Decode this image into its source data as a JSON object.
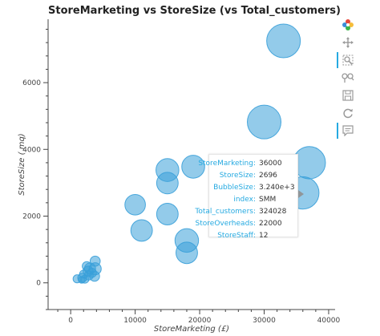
{
  "chart_data": {
    "type": "scatter",
    "title": "StoreMarketing vs StoreSize (vs Total_customers)",
    "xlabel": "StoreMarketing (£)",
    "ylabel": "StoreSize ( mq)",
    "xlim": [
      -3500,
      41000
    ],
    "ylim": [
      -800,
      7900
    ],
    "xticks": [
      0,
      10000,
      20000,
      30000,
      40000
    ],
    "yticks": [
      0,
      2000,
      4000,
      6000
    ],
    "marker_color": "#3aa0d9",
    "grid": false,
    "legend": "none",
    "points": [
      {
        "x": 33000,
        "y": 7250,
        "size": 1.0
      },
      {
        "x": 30000,
        "y": 4820,
        "size": 1.0
      },
      {
        "x": 37000,
        "y": 3600,
        "size": 0.96
      },
      {
        "x": 36000,
        "y": 2696,
        "size": 0.96
      },
      {
        "x": 15000,
        "y": 3380,
        "size": 0.68
      },
      {
        "x": 19000,
        "y": 3480,
        "size": 0.68
      },
      {
        "x": 15000,
        "y": 2990,
        "size": 0.64
      },
      {
        "x": 10000,
        "y": 2340,
        "size": 0.61
      },
      {
        "x": 15000,
        "y": 2060,
        "size": 0.64
      },
      {
        "x": 11000,
        "y": 1570,
        "size": 0.64
      },
      {
        "x": 18000,
        "y": 1270,
        "size": 0.7
      },
      {
        "x": 18000,
        "y": 900,
        "size": 0.64
      },
      {
        "x": 3800,
        "y": 650,
        "size": 0.3
      },
      {
        "x": 2500,
        "y": 500,
        "size": 0.27
      },
      {
        "x": 3000,
        "y": 430,
        "size": 0.33
      },
      {
        "x": 3800,
        "y": 420,
        "size": 0.36
      },
      {
        "x": 2700,
        "y": 350,
        "size": 0.3
      },
      {
        "x": 3300,
        "y": 300,
        "size": 0.27
      },
      {
        "x": 2800,
        "y": 220,
        "size": 0.27
      },
      {
        "x": 3700,
        "y": 200,
        "size": 0.3
      },
      {
        "x": 2000,
        "y": 260,
        "size": 0.24
      },
      {
        "x": 1800,
        "y": 150,
        "size": 0.27
      },
      {
        "x": 1000,
        "y": 120,
        "size": 0.24
      },
      {
        "x": 2200,
        "y": 110,
        "size": 0.24
      },
      {
        "x": 1700,
        "y": 90,
        "size": 0.2
      }
    ]
  },
  "tooltip": {
    "rows": [
      {
        "key": "StoreMarketing:",
        "value": "36000"
      },
      {
        "key": "StoreSize:",
        "value": "2696"
      },
      {
        "key": "BubbleSize:",
        "value": "3.240e+3"
      },
      {
        "key": "index:",
        "value": "SMM"
      },
      {
        "key": "Total_customers:",
        "value": "324028"
      },
      {
        "key": "StoreOverheads:",
        "value": "22000"
      },
      {
        "key": "StoreStaff:",
        "value": "12"
      }
    ]
  },
  "toolbar": {
    "tools": [
      {
        "name": "bokeh-logo-icon",
        "active": false
      },
      {
        "name": "pan-move-icon",
        "active": false
      },
      {
        "name": "box-zoom-icon",
        "active": true
      },
      {
        "name": "wheel-zoom-icon",
        "active": false
      },
      {
        "name": "save-icon",
        "active": false
      },
      {
        "name": "reset-icon",
        "active": false
      },
      {
        "name": "hover-tooltip-icon",
        "active": true
      }
    ]
  }
}
